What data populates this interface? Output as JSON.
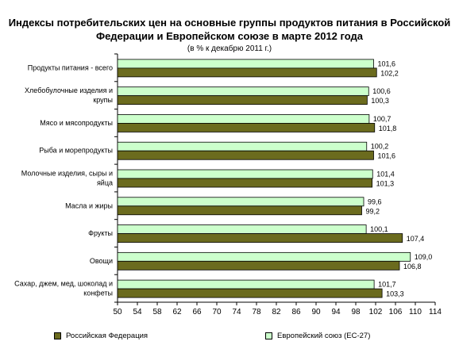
{
  "title": "Индексы потребительских цен на основные группы продуктов питания  в Российской Федерации и Европейском союзе в марте 2012 года",
  "subtitle": "(в % к декабрю 2011 г.)",
  "colors": {
    "russia": "#6b6b1e",
    "eu": "#ccffcc"
  },
  "chart_data": {
    "type": "bar",
    "orientation": "horizontal",
    "categories": [
      [
        "Продукты питания - всего"
      ],
      [
        "Хлебобулочные изделия и",
        "крупы"
      ],
      [
        "Мясо и мясопродукты"
      ],
      [
        "Рыба и морепродукты"
      ],
      [
        "Молочные изделия, сыры и",
        "яйца"
      ],
      [
        "Масла и жиры"
      ],
      [
        "Фрукты"
      ],
      [
        "Овощи"
      ],
      [
        "Сахар, джем, мед, шоколад и",
        "конфеты"
      ]
    ],
    "series": [
      {
        "name": "Европейский союз (ЕС-27)",
        "values": [
          101.6,
          100.6,
          100.7,
          100.2,
          101.4,
          99.6,
          100.1,
          109.0,
          101.7
        ],
        "labels": [
          "101,6",
          "100,6",
          "100,7",
          "100,2",
          "101,4",
          "99,6",
          "100,1",
          "109,0",
          "101,7"
        ]
      },
      {
        "name": "Российская Федерация",
        "values": [
          102.2,
          100.3,
          101.8,
          101.6,
          101.3,
          99.2,
          107.4,
          106.8,
          103.3
        ],
        "labels": [
          "102,2",
          "100,3",
          "101,8",
          "101,6",
          "101,3",
          "99,2",
          "107,4",
          "106,8",
          "103,3"
        ]
      }
    ],
    "xlim": [
      50,
      114
    ],
    "xticks": [
      "50",
      "54",
      "58",
      "62",
      "66",
      "70",
      "74",
      "78",
      "82",
      "86",
      "90",
      "94",
      "98",
      "102",
      "106",
      "110",
      "114"
    ],
    "grid": false,
    "legend": "bottom"
  },
  "legend": {
    "russia": "Российская Федерация",
    "eu": "Европейский союз (ЕС-27)"
  }
}
